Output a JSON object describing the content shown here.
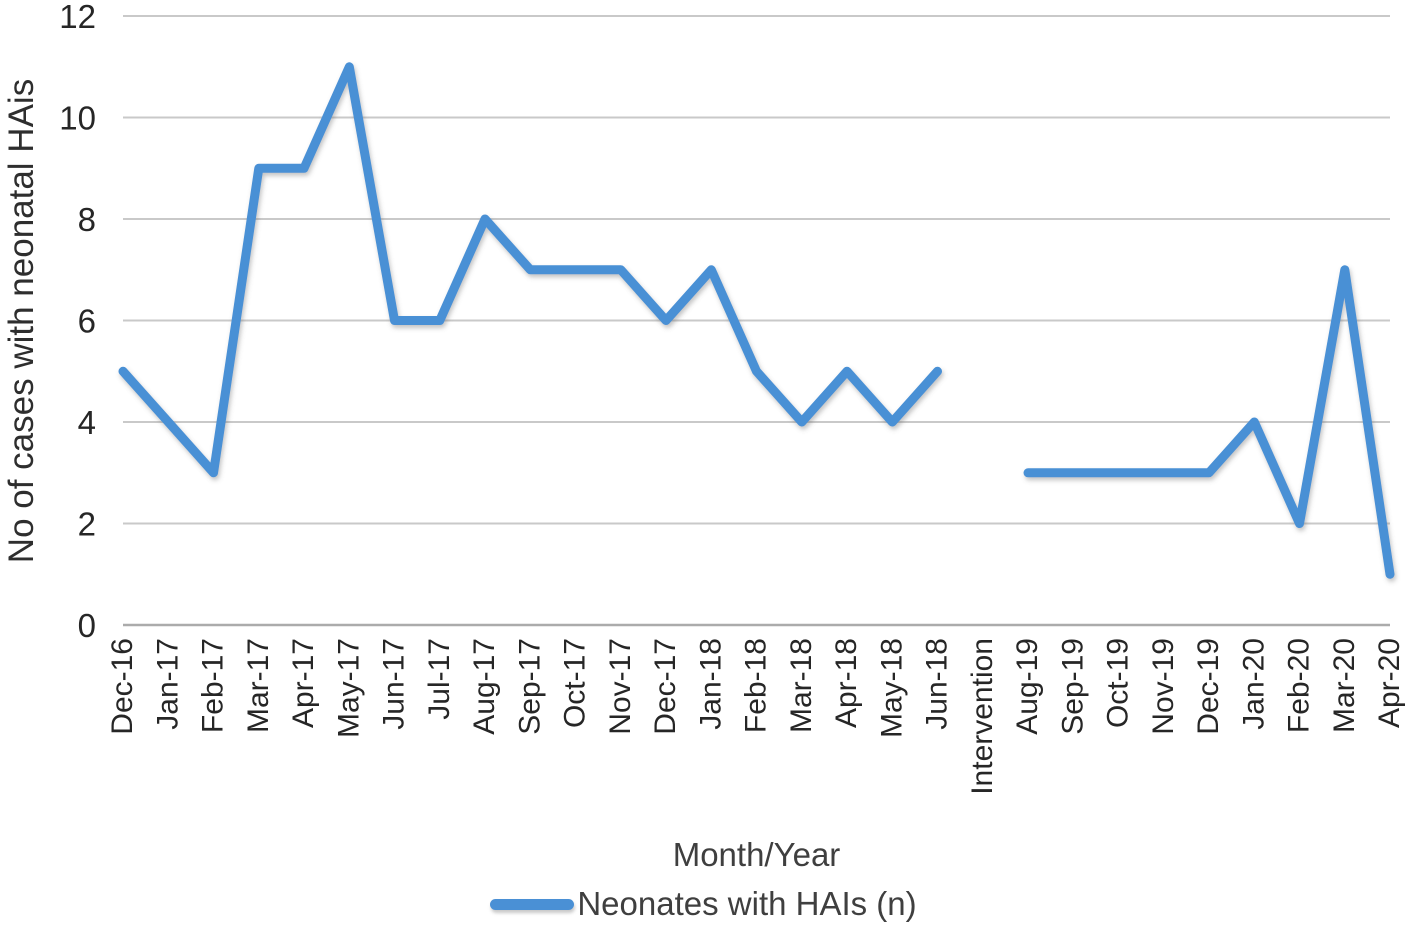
{
  "chart_data": {
    "type": "line",
    "title": "",
    "xlabel": "Month/Year",
    "ylabel": "No of cases with neonatal HAis",
    "ylim": [
      0,
      12
    ],
    "yticks": [
      0,
      2,
      4,
      6,
      8,
      10,
      12
    ],
    "grid": true,
    "legend_position": "bottom",
    "categories": [
      "Dec-16",
      "Jan-17",
      "Feb-17",
      "Mar-17",
      "Apr-17",
      "May-17",
      "Jun-17",
      "Jul-17",
      "Aug-17",
      "Sep-17",
      "Oct-17",
      "Nov-17",
      "Dec-17",
      "Jan-18",
      "Feb-18",
      "Mar-18",
      "Apr-18",
      "May-18",
      "Jun-18",
      "Intervention",
      "Aug-19",
      "Sep-19",
      "Oct-19",
      "Nov-19",
      "Dec-19",
      "Jan-20",
      "Feb-20",
      "Mar-20",
      "Apr-20"
    ],
    "series": [
      {
        "name": "Neonates with HAIs (n)",
        "values": [
          5,
          4,
          3,
          9,
          9,
          11,
          6,
          6,
          8,
          7,
          7,
          7,
          6,
          7,
          5,
          4,
          5,
          4,
          5,
          null,
          3,
          3,
          3,
          3,
          3,
          4,
          2,
          7,
          1
        ],
        "color": "#4a90d5"
      }
    ]
  },
  "colors": {
    "line": "#4a90d5",
    "gridline": "#c9c9c9",
    "axis_line": "#ababab",
    "tick_text": "#262626",
    "title_text": "#3f3f3f"
  }
}
